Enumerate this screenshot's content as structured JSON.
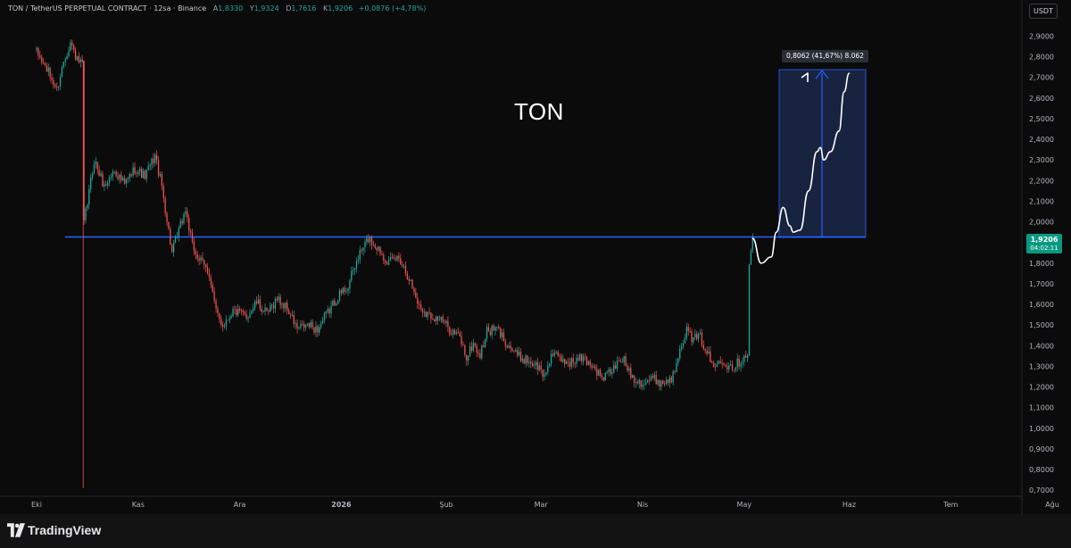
{
  "header": {
    "symbol": "TON / TetherUS PERPETUAL CONTRACT · 12sa · Binance",
    "open_label": "A",
    "open_value": "1,8330",
    "high_label": "Y",
    "high_value": "1,9324",
    "low_label": "D",
    "low_value": "1,7616",
    "close_label": "K",
    "close_value": "1,9206",
    "change": "+0,0876 (+4,78%)"
  },
  "currency_button": "USDT",
  "last_price": {
    "price": "1,9206",
    "countdown": "04:02:11"
  },
  "annotation_text": "TON",
  "measure_label": "0,8062 (41,67%) 8.062",
  "brand": {
    "name": "TradingView"
  },
  "colors": {
    "background": "#0b0b0b",
    "up": "#26a69a",
    "down": "#ef5350",
    "level_line": "#2962ff",
    "measure_box": "#17233f",
    "price_tag": "#089981"
  },
  "chart_data": {
    "type": "candlestick",
    "title": "TON / TetherUS PERPETUAL CONTRACT",
    "interval": "12sa",
    "exchange": "Binance",
    "ylim": [
      0.7,
      2.95
    ],
    "y_ticks": [
      "2,9000",
      "2,8000",
      "2,7000",
      "2,6000",
      "2,5000",
      "2,4000",
      "2,3000",
      "2,2000",
      "2,1000",
      "2,0000",
      "1,9000",
      "1,8000",
      "1,7000",
      "1,6000",
      "1,5000",
      "1,4000",
      "1,3000",
      "1,2000",
      "1,1000",
      "1,0000",
      "0,9000",
      "0,8000",
      "0,7000"
    ],
    "y_tick_values": [
      2.9,
      2.8,
      2.7,
      2.6,
      2.5,
      2.4,
      2.3,
      2.2,
      2.1,
      2.0,
      1.9,
      1.8,
      1.7,
      1.6,
      1.5,
      1.4,
      1.3,
      1.2,
      1.1,
      1.0,
      0.9,
      0.8,
      0.7
    ],
    "x_ticks": [
      "Eki",
      "Kas",
      "Ara",
      "2026",
      "Şub",
      "Mar",
      "Nis",
      "May",
      "Haz",
      "Tem",
      "Ağu"
    ],
    "x_tick_index": [
      0,
      60,
      120,
      180,
      242,
      298,
      358,
      418,
      480,
      540,
      600
    ],
    "price_path": [
      [
        0,
        2.82
      ],
      [
        6,
        2.74
      ],
      [
        12,
        2.64
      ],
      [
        16,
        2.78
      ],
      [
        20,
        2.87
      ],
      [
        24,
        2.78
      ],
      [
        27,
        2.76
      ],
      [
        28,
        1.99
      ],
      [
        34,
        2.3
      ],
      [
        40,
        2.17
      ],
      [
        46,
        2.25
      ],
      [
        52,
        2.18
      ],
      [
        58,
        2.26
      ],
      [
        64,
        2.22
      ],
      [
        70,
        2.32
      ],
      [
        74,
        2.17
      ],
      [
        80,
        1.85
      ],
      [
        88,
        2.06
      ],
      [
        92,
        1.88
      ],
      [
        96,
        1.82
      ],
      [
        102,
        1.75
      ],
      [
        106,
        1.56
      ],
      [
        110,
        1.5
      ],
      [
        116,
        1.57
      ],
      [
        124,
        1.54
      ],
      [
        130,
        1.61
      ],
      [
        136,
        1.55
      ],
      [
        142,
        1.63
      ],
      [
        148,
        1.58
      ],
      [
        154,
        1.48
      ],
      [
        160,
        1.5
      ],
      [
        166,
        1.48
      ],
      [
        172,
        1.56
      ],
      [
        178,
        1.64
      ],
      [
        184,
        1.69
      ],
      [
        190,
        1.83
      ],
      [
        196,
        1.92
      ],
      [
        202,
        1.87
      ],
      [
        208,
        1.8
      ],
      [
        214,
        1.83
      ],
      [
        220,
        1.73
      ],
      [
        226,
        1.59
      ],
      [
        232,
        1.55
      ],
      [
        238,
        1.53
      ],
      [
        244,
        1.48
      ],
      [
        250,
        1.44
      ],
      [
        254,
        1.34
      ],
      [
        258,
        1.41
      ],
      [
        262,
        1.35
      ],
      [
        266,
        1.47
      ],
      [
        272,
        1.48
      ],
      [
        278,
        1.41
      ],
      [
        284,
        1.35
      ],
      [
        290,
        1.33
      ],
      [
        296,
        1.3
      ],
      [
        300,
        1.25
      ],
      [
        304,
        1.36
      ],
      [
        310,
        1.33
      ],
      [
        316,
        1.32
      ],
      [
        322,
        1.34
      ],
      [
        328,
        1.31
      ],
      [
        334,
        1.24
      ],
      [
        340,
        1.28
      ],
      [
        346,
        1.34
      ],
      [
        352,
        1.25
      ],
      [
        358,
        1.22
      ],
      [
        364,
        1.24
      ],
      [
        370,
        1.22
      ],
      [
        376,
        1.25
      ],
      [
        380,
        1.4
      ],
      [
        384,
        1.47
      ],
      [
        388,
        1.43
      ],
      [
        392,
        1.44
      ],
      [
        396,
        1.37
      ],
      [
        400,
        1.29
      ],
      [
        404,
        1.34
      ],
      [
        408,
        1.31
      ],
      [
        412,
        1.3
      ],
      [
        416,
        1.33
      ],
      [
        420,
        1.37
      ],
      [
        421,
        1.78
      ],
      [
        423,
        1.9206
      ]
    ],
    "last_close": 1.9206,
    "horizontal_level": 1.94,
    "measure": {
      "from": 1.94,
      "to": 2.74,
      "change": "0,8062",
      "change_percent": "41,67%"
    },
    "projection_path": [
      [
        423,
        1.92
      ],
      [
        428,
        1.8
      ],
      [
        434,
        1.83
      ],
      [
        437,
        1.95
      ],
      [
        441,
        2.07
      ],
      [
        445,
        1.98
      ],
      [
        447,
        1.95
      ],
      [
        451,
        1.96
      ],
      [
        456,
        2.15
      ],
      [
        461,
        2.34
      ],
      [
        463,
        2.36
      ],
      [
        465,
        2.3
      ],
      [
        469,
        2.34
      ],
      [
        474,
        2.44
      ],
      [
        477,
        2.63
      ],
      [
        480,
        2.72
      ]
    ]
  }
}
